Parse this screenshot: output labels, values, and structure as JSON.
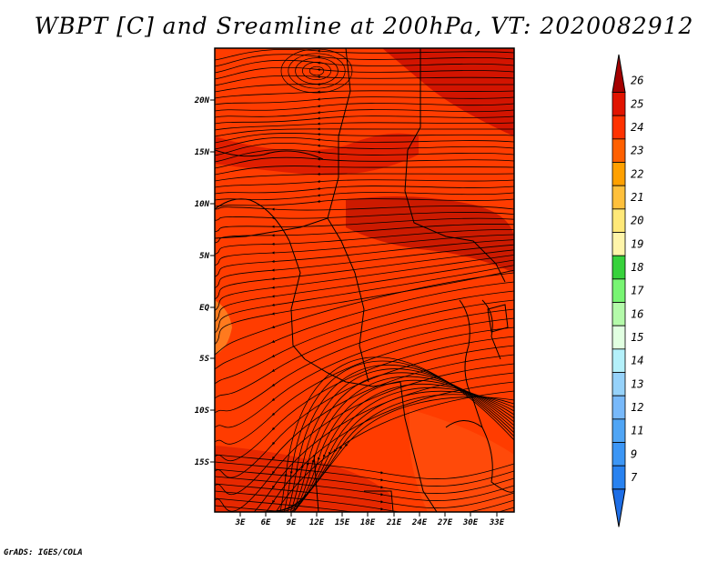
{
  "title": "WBPT [C] and Sreamline at 200hPa, VT: 2020082912",
  "credit": "GrADS: IGES/COLA",
  "map": {
    "lat_labels": [
      "20N",
      "15N",
      "10N",
      "5N",
      "EQ",
      "5S",
      "10S",
      "15S"
    ],
    "lon_labels": [
      "3E",
      "6E",
      "9E",
      "12E",
      "15E",
      "18E",
      "21E",
      "24E",
      "27E",
      "30E",
      "33E"
    ]
  },
  "colorbar": {
    "levels": [
      "7",
      "9",
      "11",
      "12",
      "13",
      "14",
      "15",
      "16",
      "17",
      "18",
      "19",
      "20",
      "21",
      "22",
      "23",
      "24",
      "25",
      "26"
    ],
    "colors": [
      "#1e6ee6",
      "#2882f0",
      "#3c96f5",
      "#50a5f5",
      "#78b9fa",
      "#96d2fa",
      "#b4f0fa",
      "#e1ffe1",
      "#b4faaa",
      "#78f573",
      "#37d23c",
      "#fff5aa",
      "#ffe878",
      "#ffc03c",
      "#ffa000",
      "#ff6000",
      "#ff3200",
      "#e11400",
      "#a50000"
    ]
  }
}
